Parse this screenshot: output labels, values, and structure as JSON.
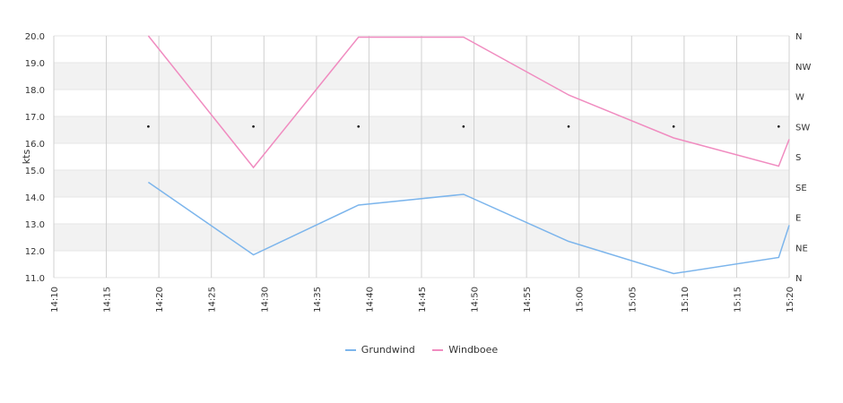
{
  "chart_data": {
    "type": "line",
    "ylabel": "kts",
    "ylim": [
      11.0,
      20.0
    ],
    "y_ticks": [
      "11.0",
      "12.0",
      "13.0",
      "14.0",
      "15.0",
      "16.0",
      "17.0",
      "18.0",
      "19.0",
      "20.0"
    ],
    "x_tick_labels": [
      "14:10",
      "14:15",
      "14:20",
      "14:25",
      "14:30",
      "14:35",
      "14:40",
      "14:45",
      "14:50",
      "14:55",
      "15:00",
      "15:05",
      "15:10",
      "15:15",
      "15:20"
    ],
    "xlim": [
      "14:10",
      "15:20"
    ],
    "y2_labels": [
      "N",
      "NE",
      "E",
      "SE",
      "S",
      "SW",
      "W",
      "NW",
      "N"
    ],
    "grid": true,
    "series": [
      {
        "name": "Grundwind",
        "color": "#7cb5ec",
        "points": [
          [
            "14:19",
            14.55
          ],
          [
            "14:29",
            11.85
          ],
          [
            "14:39",
            13.7
          ],
          [
            "14:49",
            14.1
          ],
          [
            "14:59",
            12.35
          ],
          [
            "15:09",
            11.15
          ],
          [
            "15:19",
            11.75
          ],
          [
            "15:20",
            12.95
          ]
        ]
      },
      {
        "name": "Windboee",
        "color": "#f08cc0",
        "points": [
          [
            "14:19",
            20.0
          ],
          [
            "14:29",
            15.1
          ],
          [
            "14:39",
            19.95
          ],
          [
            "14:49",
            19.95
          ],
          [
            "14:59",
            17.8
          ],
          [
            "15:09",
            16.2
          ],
          [
            "15:19",
            15.15
          ],
          [
            "15:20",
            16.15
          ]
        ]
      }
    ],
    "direction_markers": {
      "times": [
        "14:19",
        "14:29",
        "14:39",
        "14:49",
        "14:59",
        "15:09",
        "15:19"
      ],
      "direction": "SW"
    },
    "legend_position": "bottom-center"
  }
}
